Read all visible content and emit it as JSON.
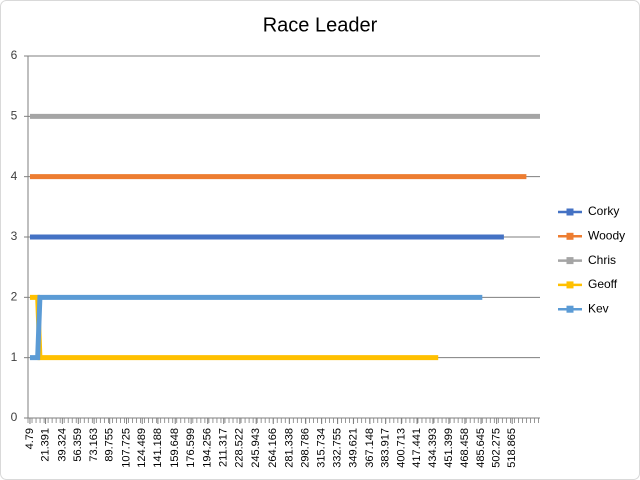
{
  "chart_data": {
    "type": "line",
    "title": "Race Leader",
    "xlim": [
      2.7,
      548.5
    ],
    "xticks": [
      4.79,
      21.391,
      39.324,
      56.359,
      73.163,
      89.755,
      107.725,
      124.489,
      141.188,
      159.648,
      176.599,
      194.256,
      211.317,
      228.522,
      245.943,
      264.166,
      281.338,
      298.786,
      315.734,
      332.755,
      349.621,
      367.148,
      383.917,
      400.713,
      417.441,
      434.393,
      451.399,
      468.458,
      485.645,
      502.275,
      518.865
    ],
    "ylim": [
      0,
      6
    ],
    "yticks": [
      0,
      1,
      2,
      3,
      4,
      5,
      6
    ],
    "grid": true,
    "legend": "right",
    "series": [
      {
        "name": "Corky",
        "color": "#4472c4",
        "x": [
          4.79,
          510
        ],
        "values": [
          3,
          3
        ]
      },
      {
        "name": "Woody",
        "color": "#ed7d31",
        "x": [
          4.79,
          534
        ],
        "values": [
          4,
          4
        ]
      },
      {
        "name": "Chris",
        "color": "#a5a5a5",
        "x": [
          4.79,
          548.5
        ],
        "values": [
          5,
          5
        ]
      },
      {
        "name": "Geoff",
        "color": "#ffc000",
        "x": [
          4.79,
          13,
          15.4,
          440
        ],
        "values": [
          2,
          2,
          1,
          1
        ]
      },
      {
        "name": "Kev",
        "color": "#5b9bd5",
        "x": [
          4.79,
          13,
          15.4,
          487
        ],
        "values": [
          1,
          1,
          2,
          2
        ]
      }
    ]
  }
}
